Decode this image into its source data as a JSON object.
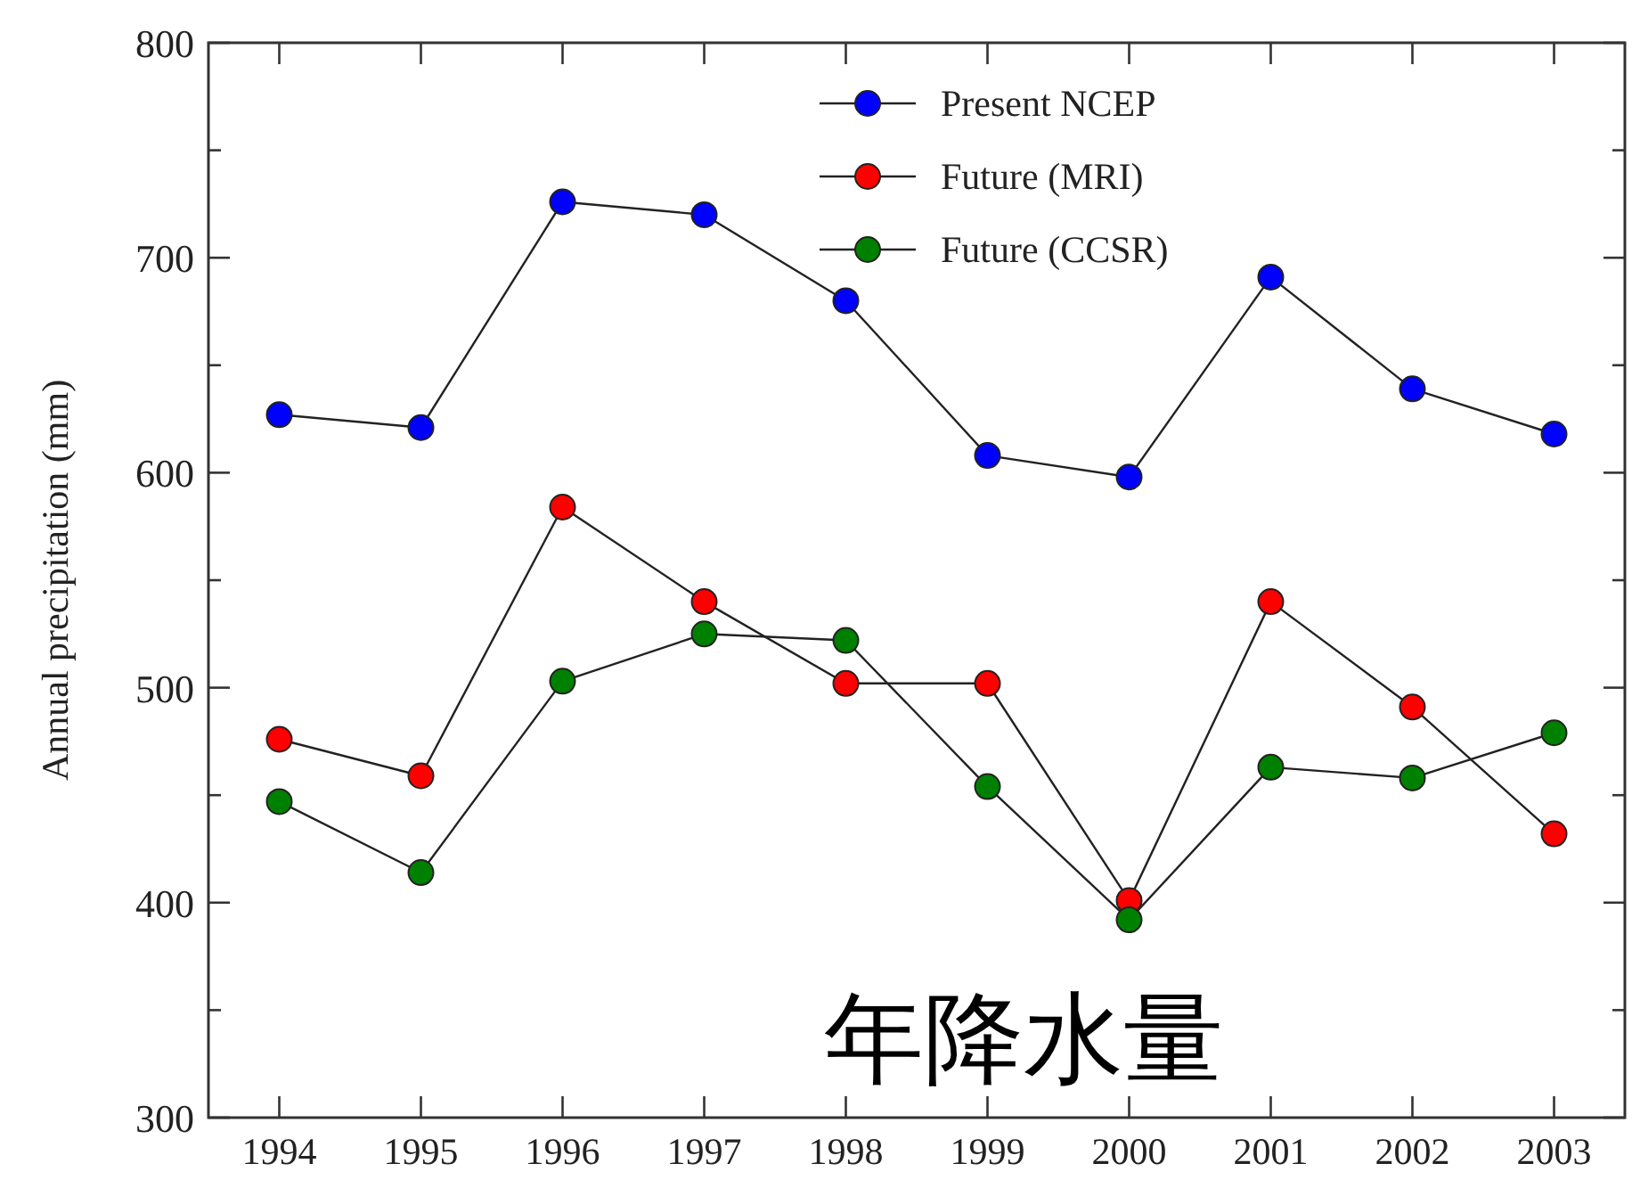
{
  "chart_data": {
    "type": "line",
    "ylabel": "Annual precipitation (mm)",
    "annotations": [
      "年降水量"
    ],
    "x": [
      1994,
      1995,
      1996,
      1997,
      1998,
      1999,
      2000,
      2001,
      2002,
      2003
    ],
    "xlim": [
      1993.5,
      2003.5
    ],
    "xticks": [
      1994,
      1995,
      1996,
      1997,
      1998,
      1999,
      2000,
      2001,
      2002,
      2003
    ],
    "ylim": [
      300,
      800
    ],
    "yticks": [
      300,
      {
        "value": 350,
        "label": null
      },
      400,
      {
        "value": 450,
        "label": null
      },
      500,
      {
        "value": 550,
        "label": null
      },
      600,
      {
        "value": 650,
        "label": null
      },
      700,
      {
        "value": 750,
        "label": null
      },
      800
    ],
    "legend": "top right",
    "marker": "circle",
    "line_style": "solid",
    "series": [
      {
        "name": "Present NCEP",
        "color": "#0000ff",
        "values": [
          627,
          621,
          726,
          720,
          680,
          608,
          598,
          691,
          639,
          618
        ]
      },
      {
        "name": "Future (MRI)",
        "color": "#ff0000",
        "values": [
          476,
          459,
          584,
          540,
          502,
          502,
          401,
          540,
          491,
          432
        ]
      },
      {
        "name": "Future (CCSR)",
        "color": "#008000",
        "values": [
          447,
          414,
          503,
          525,
          522,
          454,
          392,
          463,
          458,
          479
        ]
      }
    ]
  }
}
